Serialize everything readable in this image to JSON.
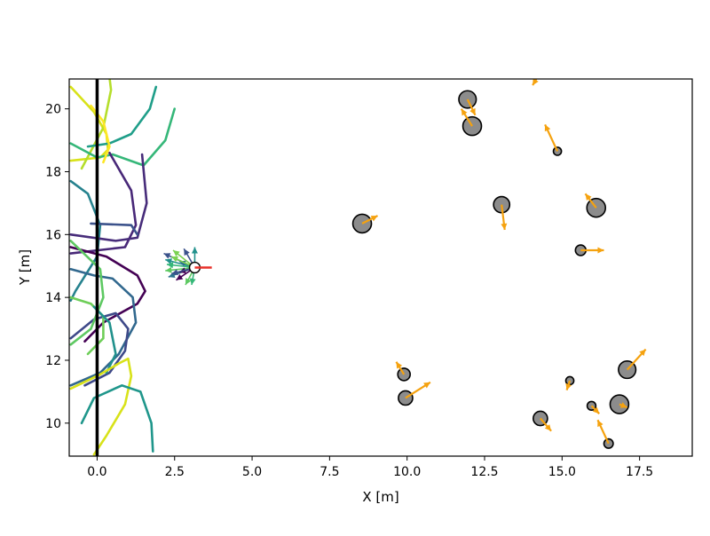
{
  "chart_data": {
    "type": "scatter",
    "xlabel": "X [m]",
    "ylabel": "Y [m]",
    "xlim": [
      -0.9,
      19.2
    ],
    "ylim": [
      8.95,
      20.95
    ],
    "grid": false,
    "x_ticks": [
      0.0,
      2.5,
      5.0,
      7.5,
      10.0,
      12.5,
      15.0,
      17.5
    ],
    "x_tick_labels": [
      "0.0",
      "2.5",
      "5.0",
      "7.5",
      "10.0",
      "12.5",
      "15.0",
      "17.5"
    ],
    "y_ticks": [
      10,
      12,
      14,
      16,
      18,
      20
    ],
    "y_tick_labels": [
      "10",
      "12",
      "14",
      "16",
      "18",
      "20"
    ],
    "colors": {
      "obstacle_fill": "#8c8c8c",
      "velocity_arrow": "#f5a20f",
      "wall": "#000000",
      "robot_heading": "#e8302a"
    },
    "wall": {
      "x": 0.0,
      "y_from": 8.95,
      "y_to": 20.95
    },
    "obstacles": [
      {
        "x": 11.95,
        "y": 20.3,
        "r": 0.28,
        "vx": 0.25,
        "vy": -0.5
      },
      {
        "x": 12.1,
        "y": 19.45,
        "r": 0.3,
        "vx": -0.35,
        "vy": 0.55
      },
      {
        "x": 14.85,
        "y": 18.65,
        "r": 0.13,
        "vx": -0.4,
        "vy": 0.85
      },
      {
        "x": 13.05,
        "y": 16.95,
        "r": 0.26,
        "vx": 0.1,
        "vy": -0.8
      },
      {
        "x": 16.1,
        "y": 16.85,
        "r": 0.3,
        "vx": -0.35,
        "vy": 0.45
      },
      {
        "x": 8.55,
        "y": 16.35,
        "r": 0.3,
        "vx": 0.5,
        "vy": 0.25
      },
      {
        "x": 15.6,
        "y": 15.5,
        "r": 0.17,
        "vx": 0.75,
        "vy": 0.0
      },
      {
        "x": 9.9,
        "y": 11.55,
        "r": 0.2,
        "vx": -0.25,
        "vy": 0.4
      },
      {
        "x": 9.95,
        "y": 10.8,
        "r": 0.23,
        "vx": 0.8,
        "vy": 0.5
      },
      {
        "x": 15.25,
        "y": 11.35,
        "r": 0.13,
        "vx": -0.1,
        "vy": -0.3
      },
      {
        "x": 17.1,
        "y": 11.7,
        "r": 0.28,
        "vx": 0.6,
        "vy": 0.65
      },
      {
        "x": 16.85,
        "y": 10.6,
        "r": 0.3,
        "vx": 0.25,
        "vy": -0.1
      },
      {
        "x": 15.95,
        "y": 10.55,
        "r": 0.14,
        "vx": 0.25,
        "vy": -0.25
      },
      {
        "x": 14.3,
        "y": 10.15,
        "r": 0.23,
        "vx": 0.35,
        "vy": -0.4
      },
      {
        "x": 16.5,
        "y": 9.35,
        "r": 0.15,
        "vx": -0.35,
        "vy": 0.75
      },
      {
        "x": 14.2,
        "y": 21.0,
        "r": 0.0,
        "vx": -0.15,
        "vy": -0.25
      }
    ],
    "robot": {
      "x": 3.15,
      "y": 14.95,
      "r": 0.17,
      "heading_length": 0.55,
      "candidate_actions": [
        {
          "dx": -1.0,
          "dy": 0.45
        },
        {
          "dx": -0.95,
          "dy": 0.25
        },
        {
          "dx": -0.9,
          "dy": 0.1
        },
        {
          "dx": -0.95,
          "dy": -0.1
        },
        {
          "dx": -0.85,
          "dy": -0.3
        },
        {
          "dx": -0.6,
          "dy": -0.4
        },
        {
          "dx": -0.7,
          "dy": 0.55
        },
        {
          "dx": -0.35,
          "dy": 0.6
        },
        {
          "dx": 0.0,
          "dy": 0.65
        },
        {
          "dx": -0.1,
          "dy": -0.55
        },
        {
          "dx": -0.3,
          "dy": -0.55
        },
        {
          "dx": -0.5,
          "dy": 0.2
        },
        {
          "dx": -0.5,
          "dy": -0.15
        },
        {
          "dx": -0.75,
          "dy": 0.35
        },
        {
          "dx": -0.75,
          "dy": -0.2
        }
      ]
    },
    "trajectories": [
      {
        "color": "#d8e219",
        "points": [
          [
            -0.85,
            20.7
          ],
          [
            -0.1,
            19.9
          ],
          [
            0.3,
            19.2
          ],
          [
            0.35,
            18.7
          ],
          [
            0.1,
            18.45
          ],
          [
            -0.85,
            18.35
          ]
        ]
      },
      {
        "color": "#b5de2b",
        "points": [
          [
            -0.5,
            18.1
          ],
          [
            0.2,
            19.4
          ],
          [
            0.45,
            20.6
          ],
          [
            0.4,
            21.0
          ]
        ]
      },
      {
        "color": "#35b779",
        "points": [
          [
            -0.85,
            18.9
          ],
          [
            0.0,
            18.45
          ],
          [
            0.5,
            18.55
          ],
          [
            1.5,
            18.2
          ],
          [
            2.2,
            19.0
          ],
          [
            2.5,
            20.0
          ]
        ]
      },
      {
        "color": "#1f9e89",
        "points": [
          [
            -0.3,
            18.8
          ],
          [
            0.4,
            18.9
          ],
          [
            1.1,
            19.2
          ],
          [
            1.7,
            20.0
          ],
          [
            1.9,
            20.7
          ]
        ]
      },
      {
        "color": "#26828e",
        "points": [
          [
            -0.85,
            17.7
          ],
          [
            -0.3,
            17.3
          ],
          [
            0.1,
            16.3
          ],
          [
            0.0,
            15.3
          ],
          [
            -0.7,
            14.2
          ],
          [
            -0.85,
            13.9
          ]
        ]
      },
      {
        "color": "#482878",
        "points": [
          [
            0.4,
            18.6
          ],
          [
            1.1,
            17.4
          ],
          [
            1.25,
            16.3
          ],
          [
            0.9,
            15.6
          ],
          [
            -0.85,
            15.4
          ]
        ]
      },
      {
        "color": "#472c7a",
        "points": [
          [
            1.45,
            18.55
          ],
          [
            1.6,
            17.0
          ],
          [
            1.3,
            15.9
          ],
          [
            0.6,
            15.8
          ],
          [
            -0.85,
            16.0
          ]
        ]
      },
      {
        "color": "#3b528b",
        "points": [
          [
            -0.2,
            16.35
          ],
          [
            1.1,
            16.3
          ],
          [
            1.3,
            16.0
          ]
        ]
      },
      {
        "color": "#440154",
        "points": [
          [
            -0.85,
            15.6
          ],
          [
            0.3,
            15.3
          ],
          [
            1.3,
            14.7
          ],
          [
            1.55,
            14.2
          ],
          [
            1.3,
            13.8
          ],
          [
            0.2,
            13.2
          ],
          [
            -0.4,
            12.6
          ]
        ]
      },
      {
        "color": "#31688e",
        "points": [
          [
            -0.85,
            14.9
          ],
          [
            -0.1,
            14.7
          ],
          [
            0.5,
            14.6
          ],
          [
            1.15,
            14.0
          ],
          [
            1.25,
            13.2
          ],
          [
            0.7,
            12.2
          ],
          [
            0.1,
            11.6
          ],
          [
            -0.85,
            11.2
          ]
        ]
      },
      {
        "color": "#3e4989",
        "points": [
          [
            -0.85,
            12.7
          ],
          [
            -0.1,
            13.3
          ],
          [
            0.6,
            13.5
          ],
          [
            1.0,
            13.0
          ],
          [
            0.9,
            12.3
          ],
          [
            0.4,
            11.6
          ],
          [
            -0.4,
            11.2
          ]
        ]
      },
      {
        "color": "#5ec962",
        "points": [
          [
            -0.85,
            15.8
          ],
          [
            0.1,
            14.9
          ],
          [
            0.2,
            14.0
          ],
          [
            -0.2,
            13.0
          ],
          [
            -0.85,
            12.5
          ]
        ]
      },
      {
        "color": "#6ece58",
        "points": [
          [
            -0.85,
            14.0
          ],
          [
            -0.2,
            13.8
          ],
          [
            0.2,
            13.4
          ],
          [
            0.2,
            12.7
          ],
          [
            -0.3,
            12.2
          ]
        ]
      },
      {
        "color": "#21918c",
        "points": [
          [
            -0.1,
            13.7
          ],
          [
            0.4,
            13.2
          ],
          [
            0.6,
            12.2
          ],
          [
            0.3,
            11.6
          ]
        ]
      },
      {
        "color": "#d8e219",
        "points": [
          [
            -0.85,
            11.1
          ],
          [
            0.1,
            11.55
          ],
          [
            0.7,
            11.9
          ],
          [
            1.0,
            12.05
          ],
          [
            1.1,
            11.5
          ],
          [
            0.9,
            10.6
          ],
          [
            0.3,
            9.6
          ],
          [
            -0.1,
            9.0
          ]
        ]
      },
      {
        "color": "#1f968b",
        "points": [
          [
            -0.5,
            10.0
          ],
          [
            -0.1,
            10.8
          ],
          [
            0.8,
            11.2
          ],
          [
            1.4,
            11.0
          ],
          [
            1.75,
            10.0
          ],
          [
            1.8,
            9.1
          ]
        ]
      },
      {
        "color": "#fde725",
        "points": [
          [
            -0.2,
            20.1
          ],
          [
            0.2,
            19.6
          ],
          [
            0.4,
            18.8
          ],
          [
            0.2,
            18.3
          ]
        ]
      }
    ]
  }
}
